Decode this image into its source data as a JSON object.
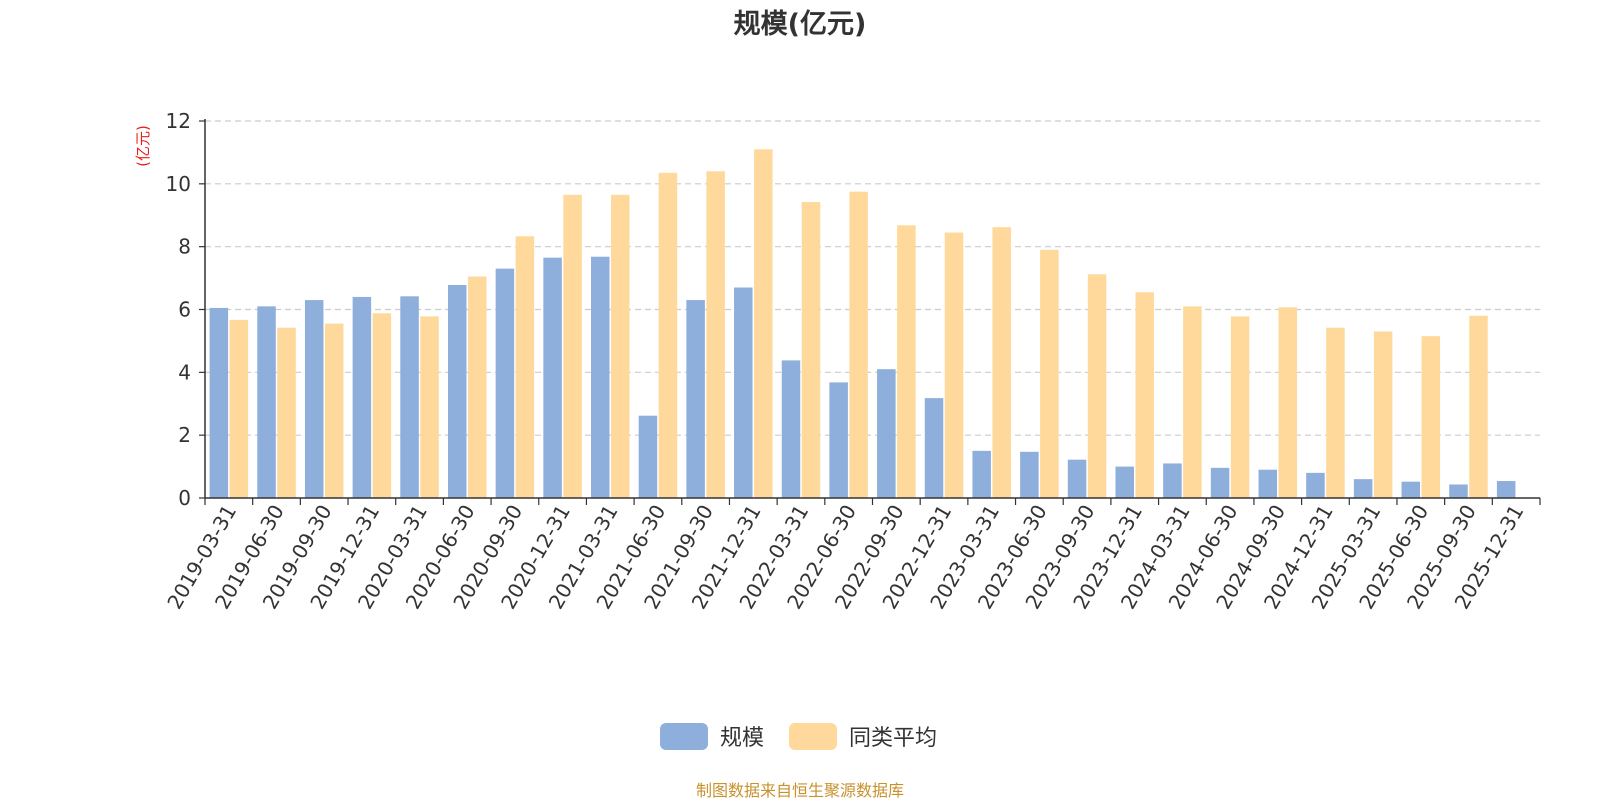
{
  "chart_data": {
    "type": "bar",
    "title": "规模(亿元)",
    "ylabel": "(亿元)",
    "ylim": [
      0,
      12
    ],
    "yticks": [
      0,
      2,
      4,
      6,
      8,
      10,
      12
    ],
    "grid": true,
    "legend_position": "bottom-center",
    "categories": [
      "2019-03-31",
      "2019-06-30",
      "2019-09-30",
      "2019-12-31",
      "2020-03-31",
      "2020-06-30",
      "2020-09-30",
      "2020-12-31",
      "2021-03-31",
      "2021-06-30",
      "2021-09-30",
      "2021-12-31",
      "2022-03-31",
      "2022-06-30",
      "2022-09-30",
      "2022-12-31",
      "2023-03-31",
      "2023-06-30",
      "2023-09-30",
      "2023-12-31",
      "2024-03-31",
      "2024-06-30",
      "2024-09-30",
      "2024-12-31",
      "2025-03-31",
      "2025-06-30",
      "2025-09-30",
      "2025-12-31"
    ],
    "series": [
      {
        "name": "规模",
        "color": "#8eaedc",
        "values": [
          6.05,
          6.1,
          6.3,
          6.4,
          6.42,
          6.78,
          7.3,
          7.65,
          7.68,
          2.62,
          6.3,
          6.7,
          4.38,
          3.68,
          4.1,
          3.18,
          1.5,
          1.47,
          1.22,
          1.0,
          1.1,
          0.96,
          0.9,
          0.8,
          0.6,
          0.52,
          0.43,
          0.54
        ]
      },
      {
        "name": "同类平均",
        "color": "#fed99b",
        "values": [
          5.67,
          5.42,
          5.55,
          5.88,
          5.78,
          7.05,
          8.33,
          9.65,
          9.65,
          10.35,
          10.4,
          11.1,
          9.42,
          9.75,
          8.68,
          8.45,
          8.62,
          7.9,
          7.12,
          6.55,
          6.1,
          5.78,
          6.07,
          5.42,
          5.3,
          5.15,
          5.8,
          null
        ]
      }
    ]
  },
  "footer": {
    "source": "制图数据来自恒生聚源数据库"
  }
}
